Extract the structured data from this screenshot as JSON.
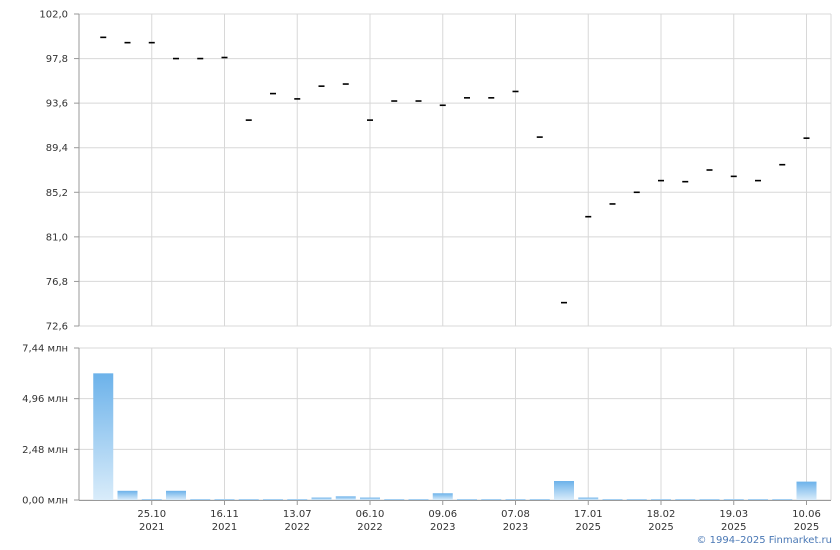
{
  "chart_data": [
    {
      "type": "scatter",
      "marker": "dash",
      "grid": true,
      "ylim": [
        72.6,
        102.0
      ],
      "y_ticks": [
        "102,0",
        "97,8",
        "93,6",
        "89,4",
        "85,2",
        "81,0",
        "76,8",
        "72,6"
      ],
      "x": [
        1,
        2,
        3,
        4,
        5,
        6,
        7,
        8,
        9,
        10,
        11,
        12,
        13,
        14,
        15,
        16,
        17,
        18,
        19,
        20,
        21,
        22,
        23,
        24,
        25,
        26,
        27,
        28,
        29,
        30
      ],
      "values": [
        99.8,
        99.3,
        99.3,
        97.8,
        97.8,
        97.9,
        92.0,
        94.5,
        94.0,
        95.2,
        95.4,
        92.0,
        93.8,
        93.8,
        93.4,
        94.1,
        94.1,
        94.7,
        90.4,
        74.8,
        82.9,
        84.1,
        85.2,
        86.3,
        86.2,
        87.3,
        86.7,
        86.3,
        87.8,
        90.3
      ],
      "color": "#000000"
    },
    {
      "type": "bar",
      "ylim": [
        0,
        7.44
      ],
      "y_ticks": [
        "7,44 млн",
        "4,96 млн",
        "2,48 млн",
        "0,00 млн"
      ],
      "x": [
        1,
        2,
        3,
        4,
        5,
        6,
        7,
        8,
        9,
        10,
        11,
        12,
        13,
        14,
        15,
        16,
        17,
        18,
        19,
        20,
        21,
        22,
        23,
        24,
        25,
        26,
        27,
        28,
        29,
        30
      ],
      "values": [
        6.2,
        0.45,
        0.03,
        0.45,
        0.03,
        0.02,
        0.02,
        0.02,
        0.02,
        0.12,
        0.18,
        0.12,
        0.03,
        0.03,
        0.33,
        0.03,
        0.03,
        0.03,
        0.03,
        0.93,
        0.12,
        0.03,
        0.02,
        0.03,
        0.02,
        0.02,
        0.02,
        0.02,
        0.02,
        0.9
      ],
      "color_top": "#6cb2ea",
      "color_bottom": "#d9ecfa"
    }
  ],
  "x_axis": {
    "labels": [
      {
        "pos": 3,
        "line1": "25.10",
        "line2": "2021"
      },
      {
        "pos": 6,
        "line1": "16.11",
        "line2": "2021"
      },
      {
        "pos": 9,
        "line1": "13.07",
        "line2": "2022"
      },
      {
        "pos": 12,
        "line1": "06.10",
        "line2": "2022"
      },
      {
        "pos": 15,
        "line1": "09.06",
        "line2": "2023"
      },
      {
        "pos": 18,
        "line1": "07.08",
        "line2": "2023"
      },
      {
        "pos": 21,
        "line1": "17.01",
        "line2": "2025"
      },
      {
        "pos": 24,
        "line1": "18.02",
        "line2": "2025"
      },
      {
        "pos": 27,
        "line1": "19.03",
        "line2": "2025"
      },
      {
        "pos": 30,
        "line1": "10.06",
        "line2": "2025"
      }
    ]
  },
  "copyright": "© 1994–2025 Finmarket.ru",
  "colors": {
    "grid": "#d8d8d8",
    "axis": "#999999"
  }
}
